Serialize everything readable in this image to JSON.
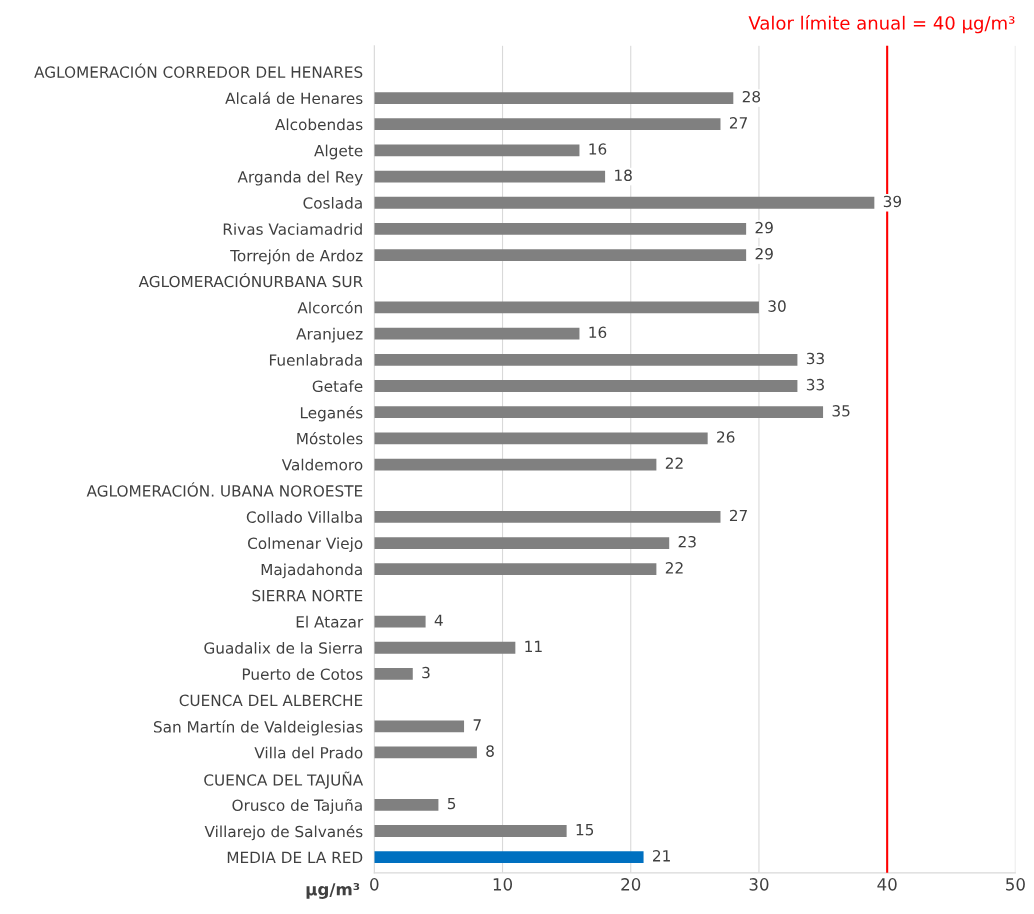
{
  "chart_data": {
    "type": "bar",
    "orientation": "horizontal",
    "xlabel": "μg/m³",
    "categories": [
      "AGLOMERACIÓN CORREDOR DEL HENARES",
      "Alcalá de Henares",
      "Alcobendas",
      "Algete",
      "Arganda del Rey",
      "Coslada",
      "Rivas Vaciamadrid",
      "Torrejón de Ardoz",
      "AGLOMERACIÓNURBANA SUR",
      "Alcorcón",
      "Aranjuez",
      "Fuenlabrada",
      "Getafe",
      "Leganés",
      "Móstoles",
      "Valdemoro",
      "AGLOMERACIÓN. UBANA NOROESTE",
      "Collado Villalba",
      "Colmenar Viejo",
      "Majadahonda",
      "SIERRA NORTE",
      "El Atazar",
      "Guadalix de la Sierra",
      "Puerto de Cotos",
      "CUENCA DEL ALBERCHE",
      "San Martín de Valdeiglesias",
      "Villa del Prado",
      "CUENCA DEL TAJUÑA",
      "Orusco de Tajuña",
      "Villarejo de Salvanés",
      "MEDIA DE LA RED"
    ],
    "values": [
      null,
      28,
      27,
      16,
      18,
      39,
      29,
      29,
      null,
      30,
      16,
      33,
      33,
      35,
      26,
      22,
      null,
      27,
      23,
      22,
      null,
      4,
      11,
      3,
      null,
      7,
      8,
      null,
      5,
      15,
      21
    ],
    "colors": [
      "#808080",
      "#808080",
      "#808080",
      "#808080",
      "#808080",
      "#808080",
      "#808080",
      "#808080",
      "#808080",
      "#808080",
      "#808080",
      "#808080",
      "#808080",
      "#808080",
      "#808080",
      "#808080",
      "#808080",
      "#808080",
      "#808080",
      "#808080",
      "#808080",
      "#808080",
      "#808080",
      "#808080",
      "#808080",
      "#808080",
      "#808080",
      "#808080",
      "#808080",
      "#808080",
      "#0070c0"
    ],
    "data_labels": true,
    "xlim": [
      0,
      50
    ],
    "xticks": [
      0,
      10,
      20,
      30,
      40,
      50
    ],
    "grid": "x",
    "ref_lines": [
      {
        "axis": "x",
        "value": 40,
        "label": "Valor límite anual = 40 μg/m³",
        "color": "#ff0000"
      }
    ]
  }
}
